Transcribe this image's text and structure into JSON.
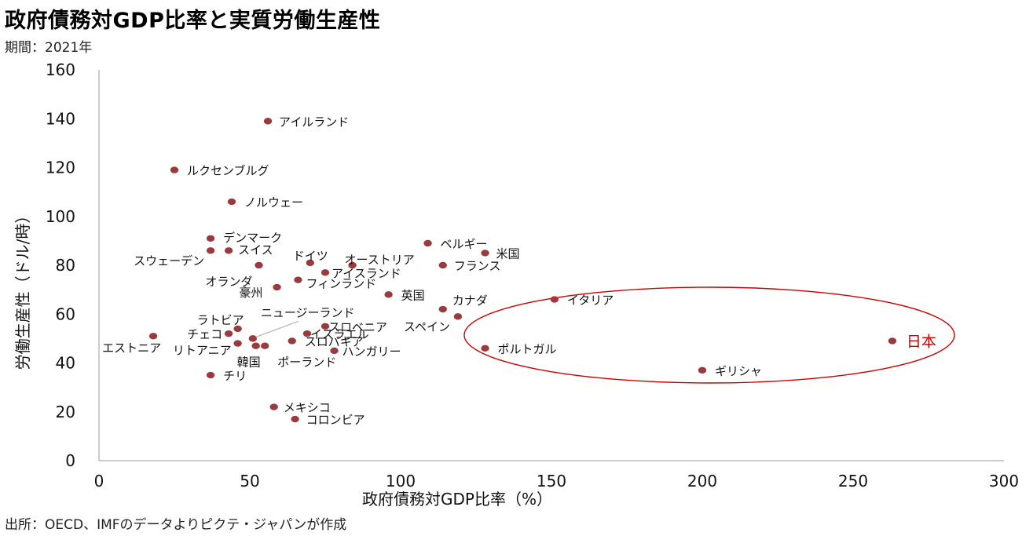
{
  "header": {
    "title": "政府債務対GDP比率と実質労働生産性",
    "period": "期間：2021年"
  },
  "footer": {
    "source": "出所：OECD、IMFのデータよりピクテ・ジャパンが作成"
  },
  "colors": {
    "point": "#9b3a3c",
    "highlight": "#cc0000",
    "axis": "#999999",
    "leader": "#bbbbbb"
  },
  "chart_data": {
    "type": "scatter",
    "xlabel": "政府債務対GDP比率（%）",
    "ylabel": "労働生産性（ドル/時）",
    "xlim": [
      0,
      300
    ],
    "ylim": [
      0,
      160
    ],
    "xticks": [
      0,
      50,
      100,
      150,
      200,
      250,
      300
    ],
    "yticks": [
      0,
      20,
      40,
      60,
      80,
      100,
      120,
      140,
      160
    ],
    "grid": false,
    "points": [
      {
        "label": "アイルランド",
        "x": 56,
        "y": 139
      },
      {
        "label": "ルクセンブルグ",
        "x": 25,
        "y": 119
      },
      {
        "label": "ノルウェー",
        "x": 44,
        "y": 106
      },
      {
        "label": "デンマーク",
        "x": 37,
        "y": 91
      },
      {
        "label": "スウェーデン",
        "x": 37,
        "y": 86
      },
      {
        "label": "スイス",
        "x": 43,
        "y": 86
      },
      {
        "label": "ベルギー",
        "x": 109,
        "y": 89
      },
      {
        "label": "米国",
        "x": 128,
        "y": 85
      },
      {
        "label": "ドイツ",
        "x": 70,
        "y": 81
      },
      {
        "label": "オーストリア",
        "x": 84,
        "y": 80
      },
      {
        "label": "フランス",
        "x": 114,
        "y": 80
      },
      {
        "label": "オランダ",
        "x": 53,
        "y": 80
      },
      {
        "label": "アイスランド",
        "x": 75,
        "y": 77
      },
      {
        "label": "フィンランド",
        "x": 66,
        "y": 74
      },
      {
        "label": "豪州",
        "x": 59,
        "y": 71
      },
      {
        "label": "英国",
        "x": 96,
        "y": 68
      },
      {
        "label": "イタリア",
        "x": 151,
        "y": 66
      },
      {
        "label": "カナダ",
        "x": 114,
        "y": 62
      },
      {
        "label": "スペイン",
        "x": 119,
        "y": 59
      },
      {
        "label": "ラトビア",
        "x": 46,
        "y": 54
      },
      {
        "label": "ニュージーランド",
        "x": 51,
        "y": 50
      },
      {
        "label": "スロベニア",
        "x": 75,
        "y": 55
      },
      {
        "label": "イスラエル",
        "x": 69,
        "y": 52
      },
      {
        "label": "チェコ",
        "x": 43,
        "y": 52
      },
      {
        "label": "エストニア",
        "x": 18,
        "y": 51
      },
      {
        "label": "リトアニア",
        "x": 46,
        "y": 48
      },
      {
        "label": "スロバキア",
        "x": 64,
        "y": 49
      },
      {
        "label": "韓国",
        "x": 52,
        "y": 47
      },
      {
        "label": "ポーランド",
        "x": 55,
        "y": 47
      },
      {
        "label": "ハンガリー",
        "x": 78,
        "y": 45
      },
      {
        "label": "ポルトガル",
        "x": 128,
        "y": 46
      },
      {
        "label": "日本",
        "x": 263,
        "y": 49
      },
      {
        "label": "ギリシャ",
        "x": 200,
        "y": 37
      },
      {
        "label": "チリ",
        "x": 37,
        "y": 35
      },
      {
        "label": "メキシコ",
        "x": 58,
        "y": 22
      },
      {
        "label": "コロンビア",
        "x": 65,
        "y": 17
      }
    ]
  }
}
